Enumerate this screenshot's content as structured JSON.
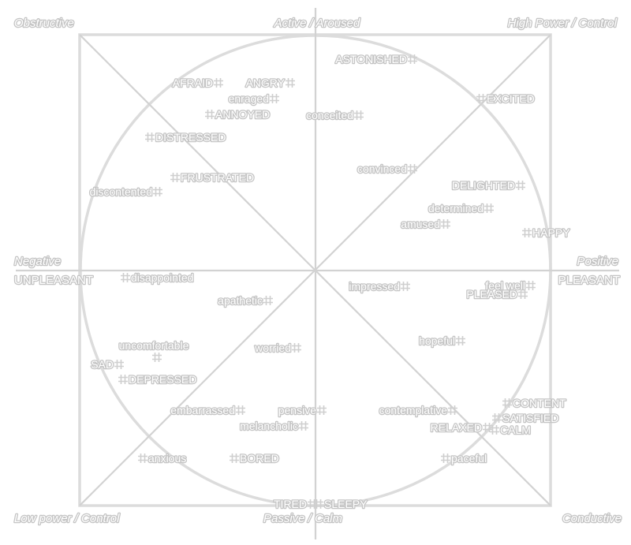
{
  "corners": {
    "top_left": "Obstructive",
    "top_center": "Active / Aroused",
    "top_right": "High Power / Control",
    "bottom_left": "Low power / Control",
    "bottom_center": "Passive / Calm",
    "bottom_right": "Conductive"
  },
  "axes": {
    "left_top": "Negative",
    "left_bottom": "UNPLEASANT",
    "right_top": "Positive",
    "right_bottom": "PLEASANT"
  },
  "words": [
    {
      "id": "astonished",
      "label": "ASTONISHED",
      "side": "left"
    },
    {
      "id": "afraid",
      "label": "AFRAID",
      "side": "left"
    },
    {
      "id": "angry",
      "label": "ANGRY",
      "side": "left"
    },
    {
      "id": "enraged",
      "label": "enraged",
      "side": "left"
    },
    {
      "id": "annoyed",
      "label": "ANNOYED",
      "side": "right"
    },
    {
      "id": "conceited",
      "label": "conceited",
      "side": "left"
    },
    {
      "id": "excited",
      "label": "EXCITED",
      "side": "right"
    },
    {
      "id": "distressed",
      "label": "DISTRESSED",
      "side": "right"
    },
    {
      "id": "convinced",
      "label": "convinced",
      "side": "left"
    },
    {
      "id": "frustrated",
      "label": "FRUSTRATED",
      "side": "right"
    },
    {
      "id": "delighted",
      "label": "DELIGHTED",
      "side": "left"
    },
    {
      "id": "discontented",
      "label": "discontented",
      "side": "left"
    },
    {
      "id": "determined",
      "label": "determined",
      "side": "left"
    },
    {
      "id": "amused",
      "label": "amused",
      "side": "left"
    },
    {
      "id": "happy",
      "label": "HAPPY",
      "side": "right"
    },
    {
      "id": "disappointed",
      "label": "disappointed",
      "side": "right"
    },
    {
      "id": "impressed",
      "label": "impressed",
      "side": "left"
    },
    {
      "id": "feel_well",
      "label": "feel well",
      "side": "left"
    },
    {
      "id": "pleased",
      "label": "PLEASED",
      "side": "left"
    },
    {
      "id": "apathetic",
      "label": "apathetic",
      "side": "left"
    },
    {
      "id": "hopeful",
      "label": "hopeful",
      "side": "left"
    },
    {
      "id": "uncomfortable",
      "label": "uncomfortable",
      "side": "below"
    },
    {
      "id": "worried",
      "label": "worried",
      "side": "left"
    },
    {
      "id": "sad",
      "label": "SAD",
      "side": "left"
    },
    {
      "id": "depressed",
      "label": "DEPRESSED",
      "side": "right"
    },
    {
      "id": "content",
      "label": "CONTENT",
      "side": "right"
    },
    {
      "id": "embarrassed",
      "label": "embarrassed",
      "side": "left"
    },
    {
      "id": "pensive",
      "label": "pensive",
      "side": "left"
    },
    {
      "id": "contemplative",
      "label": "contemplative",
      "side": "left"
    },
    {
      "id": "satisfied",
      "label": "SATISFIED",
      "side": "right"
    },
    {
      "id": "melancholic",
      "label": "melancholic",
      "side": "left"
    },
    {
      "id": "relaxed",
      "label": "RELAXED",
      "side": "left"
    },
    {
      "id": "calm",
      "label": "CALM",
      "side": "right"
    },
    {
      "id": "anxious",
      "label": "anxious",
      "side": "right"
    },
    {
      "id": "bored",
      "label": "BORED",
      "side": "right"
    },
    {
      "id": "paceful",
      "label": "paceful",
      "side": "right"
    },
    {
      "id": "tired",
      "label": "TIRED",
      "side": "left"
    },
    {
      "id": "sleepy",
      "label": "SLEEPY",
      "side": "right"
    }
  ]
}
